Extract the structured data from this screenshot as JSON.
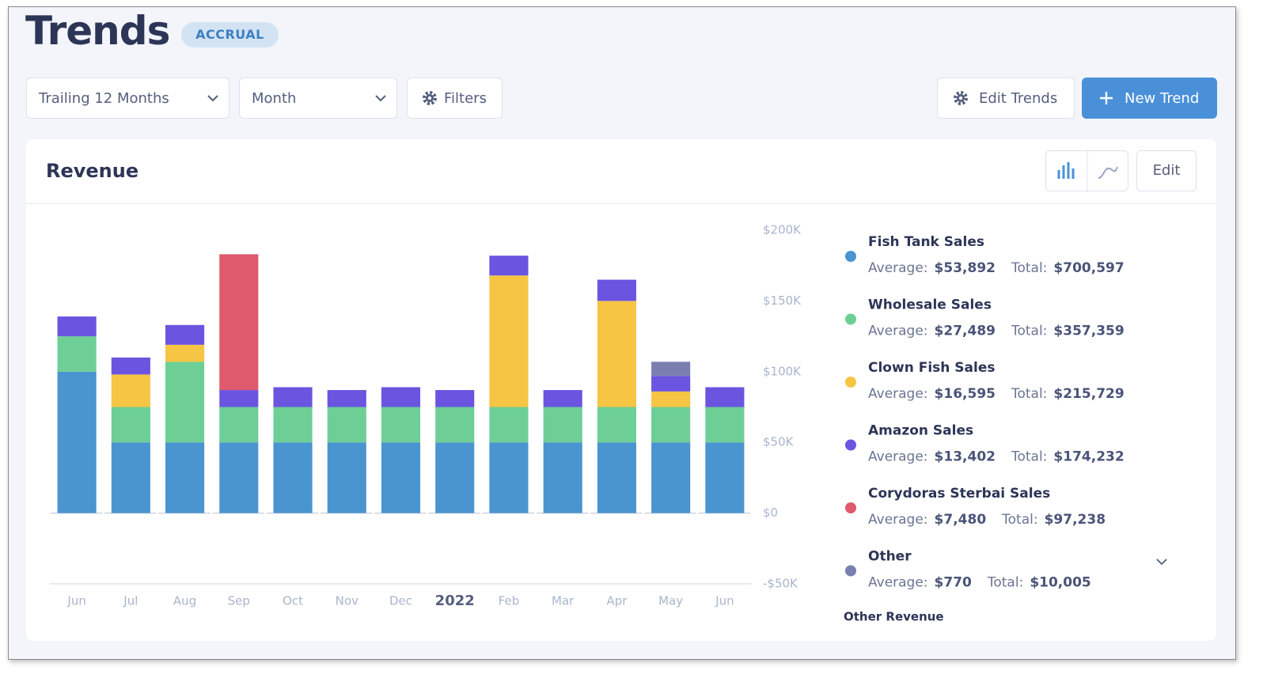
{
  "header": {
    "title": "Trends",
    "badge": "ACCRUAL"
  },
  "toolbar": {
    "period": "Trailing 12 Months",
    "interval": "Month",
    "filters": "Filters",
    "edit_trends": "Edit Trends",
    "new_trend": "New Trend"
  },
  "card": {
    "title": "Revenue",
    "edit": "Edit",
    "footer": "Other Revenue",
    "average_label": "Average:",
    "total_label": "Total:"
  },
  "chart_data": {
    "type": "bar",
    "stacked": true,
    "categories": [
      "Jun",
      "Jul",
      "Aug",
      "Sep",
      "Oct",
      "Nov",
      "Dec",
      "2022",
      "Feb",
      "Mar",
      "Apr",
      "May",
      "Jun"
    ],
    "series": [
      {
        "name": "Fish Tank Sales",
        "color": "#4a94d0",
        "average": "$53,892",
        "total": "$700,597",
        "values": [
          100000,
          50000,
          50000,
          50000,
          50000,
          50000,
          50000,
          50000,
          50000,
          50000,
          50000,
          50000,
          50000
        ]
      },
      {
        "name": "Wholesale Sales",
        "color": "#6dcf95",
        "average": "$27,489",
        "total": "$357,359",
        "values": [
          25000,
          25000,
          57000,
          25000,
          25000,
          25000,
          25000,
          25000,
          25000,
          25000,
          25000,
          25000,
          25000
        ]
      },
      {
        "name": "Clown Fish Sales",
        "color": "#f6c544",
        "average": "$16,595",
        "total": "$215,729",
        "values": [
          0,
          23000,
          12000,
          0,
          0,
          0,
          0,
          0,
          93000,
          0,
          75000,
          11000,
          0
        ]
      },
      {
        "name": "Amazon Sales",
        "color": "#6b54e0",
        "average": "$13,402",
        "total": "$174,232",
        "values": [
          14000,
          12000,
          14000,
          12000,
          14000,
          12000,
          14000,
          12000,
          14000,
          12000,
          15000,
          11000,
          14000
        ]
      },
      {
        "name": "Corydoras Sterbai Sales",
        "color": "#de5a6c",
        "average": "$7,480",
        "total": "$97,238",
        "values": [
          0,
          0,
          0,
          96000,
          0,
          0,
          0,
          0,
          0,
          0,
          0,
          0,
          0
        ]
      },
      {
        "name": "Other",
        "color": "#7a7fb0",
        "average": "$770",
        "total": "$10,005",
        "values": [
          0,
          0,
          0,
          0,
          0,
          0,
          0,
          0,
          0,
          0,
          0,
          10000,
          0
        ]
      }
    ],
    "ylim": [
      -50000,
      200000
    ],
    "yticks": [
      {
        "value": -50000,
        "label": "-$50K"
      },
      {
        "value": 0,
        "label": "$0"
      },
      {
        "value": 50000,
        "label": "$50K"
      },
      {
        "value": 100000,
        "label": "$100K"
      },
      {
        "value": 150000,
        "label": "$150K"
      },
      {
        "value": 200000,
        "label": "$200K"
      }
    ]
  }
}
